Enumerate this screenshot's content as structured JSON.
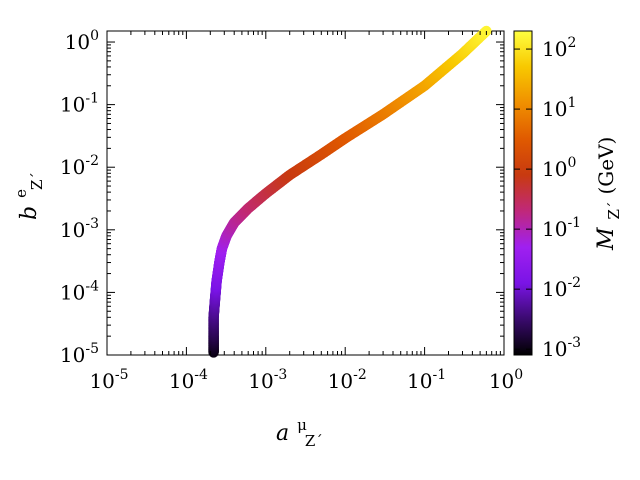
{
  "chart_data": {
    "type": "scatter",
    "description_of_axes": "log-log",
    "x": {
      "label_main": "a",
      "label_sup": "μ",
      "label_sub": "Z´",
      "scale": "log",
      "lim": [
        1e-05,
        1.0
      ],
      "ticks": [
        {
          "base": "10",
          "exp": "-5"
        },
        {
          "base": "10",
          "exp": "-4"
        },
        {
          "base": "10",
          "exp": "-3"
        },
        {
          "base": "10",
          "exp": "-2"
        },
        {
          "base": "10",
          "exp": "-1"
        },
        {
          "base": "10",
          "exp": "0"
        }
      ]
    },
    "y": {
      "label_main": "b",
      "label_sup": "e",
      "label_sub": "Z´",
      "scale": "log",
      "lim": [
        1e-05,
        1.5
      ],
      "ticks": [
        {
          "base": "10",
          "exp": "-5"
        },
        {
          "base": "10",
          "exp": "-4"
        },
        {
          "base": "10",
          "exp": "-3"
        },
        {
          "base": "10",
          "exp": "-2"
        },
        {
          "base": "10",
          "exp": "-1"
        },
        {
          "base": "10",
          "exp": "0"
        }
      ]
    },
    "colorbar": {
      "label_main": "M",
      "label_sub": "Z´",
      "label_unit": "(GeV)",
      "scale": "log",
      "lim": [
        0.0008,
        200
      ],
      "ticks": [
        {
          "base": "10",
          "exp": "-3"
        },
        {
          "base": "10",
          "exp": "-2"
        },
        {
          "base": "10",
          "exp": "-1"
        },
        {
          "base": "10",
          "exp": "0"
        },
        {
          "base": "10",
          "exp": "1"
        },
        {
          "base": "10",
          "exp": "2"
        }
      ],
      "palette": [
        "#000000",
        "#3a0a6e",
        "#7a14e6",
        "#a020f0",
        "#c0287a",
        "#c83a10",
        "#e05a00",
        "#f09000",
        "#f8c800",
        "#ffff40"
      ]
    },
    "band": {
      "x": [
        0.00022,
        0.00022,
        0.00022,
        0.00023,
        0.00024,
        0.00026,
        0.00028,
        0.00032,
        0.0004,
        0.0006,
        0.001,
        0.002,
        0.005,
        0.01,
        0.03,
        0.1,
        0.3,
        0.6
      ],
      "y": [
        1.1e-05,
        2e-05,
        4e-05,
        8e-05,
        0.00015,
        0.0003,
        0.0005,
        0.0008,
        0.0013,
        0.0022,
        0.0038,
        0.0075,
        0.016,
        0.029,
        0.07,
        0.2,
        0.65,
        1.5
      ],
      "mass_gev": [
        0.001,
        0.002,
        0.004,
        0.008,
        0.015,
        0.03,
        0.05,
        0.08,
        0.13,
        0.22,
        0.38,
        0.75,
        1.6,
        2.9,
        7,
        20,
        65,
        150
      ]
    }
  }
}
